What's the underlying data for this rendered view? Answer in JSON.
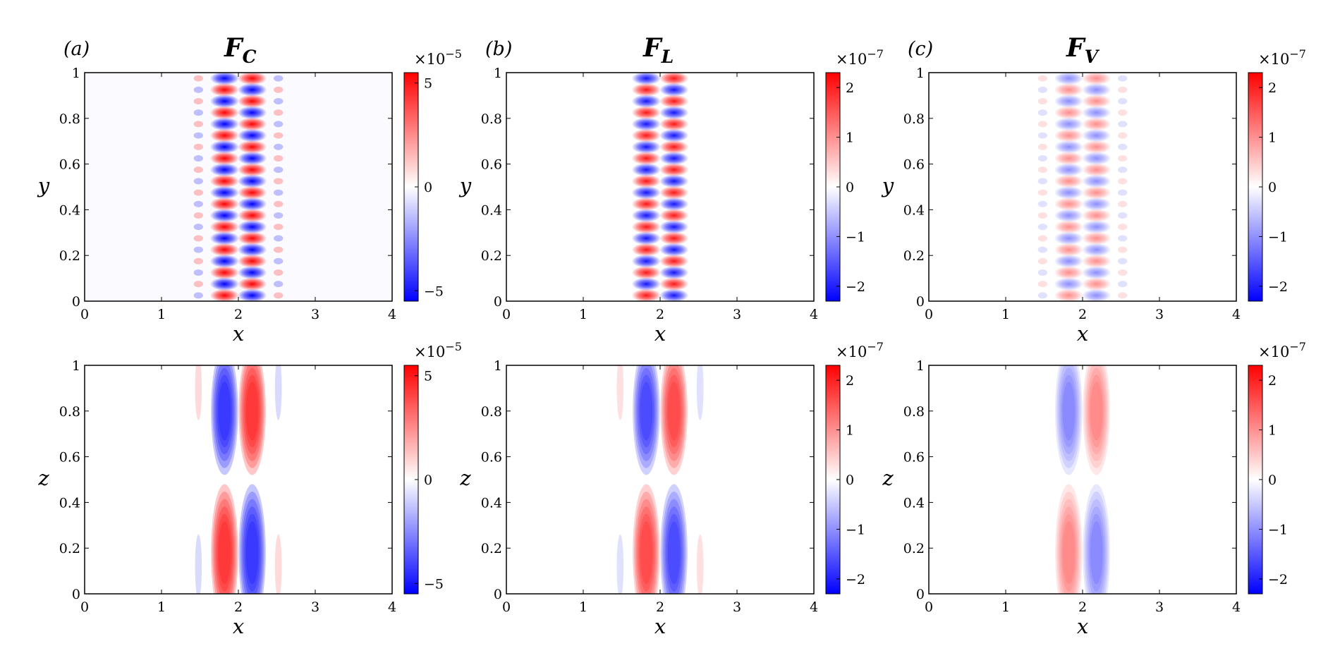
{
  "figure": {
    "columns": [
      {
        "tag": "(a)",
        "title_main": "F",
        "title_sub": "C"
      },
      {
        "tag": "(b)",
        "title_main": "F",
        "title_sub": "L"
      },
      {
        "tag": "(c)",
        "title_main": "F",
        "title_sub": "V"
      }
    ]
  },
  "chart_data": [
    {
      "type": "heatmap",
      "panel": "a-top",
      "title": "F_C",
      "xlabel": "x",
      "ylabel": "y",
      "xlim": [
        0,
        4
      ],
      "ylim": [
        0,
        1
      ],
      "xticks": [
        "0",
        "1",
        "2",
        "3",
        "4"
      ],
      "yticks": [
        "0",
        "0.2",
        "0.4",
        "0.6",
        "0.8",
        "1"
      ],
      "colorbar": {
        "multiplier": "×10",
        "exponent": "−5",
        "ticks": [
          "5",
          "0",
          "−5"
        ],
        "range": [
          -5.5,
          5.5
        ]
      },
      "pattern": {
        "kind": "xy-stripes",
        "centers": [
          1.82,
          2.18
        ],
        "amplitude": 1.0,
        "side_lobes": 0.12,
        "rows": 20
      }
    },
    {
      "type": "heatmap",
      "panel": "b-top",
      "title": "F_L",
      "xlabel": "x",
      "ylabel": "y",
      "xlim": [
        0,
        4
      ],
      "ylim": [
        0,
        1
      ],
      "xticks": [
        "0",
        "1",
        "2",
        "3",
        "4"
      ],
      "yticks": [
        "0",
        "0.2",
        "0.4",
        "0.6",
        "0.8",
        "1"
      ],
      "colorbar": {
        "multiplier": "×10",
        "exponent": "−7",
        "ticks": [
          "2",
          "1",
          "0",
          "−1",
          "−2"
        ],
        "range": [
          -2.3,
          2.3
        ]
      },
      "pattern": {
        "kind": "xy-stripes",
        "centers": [
          1.82,
          2.18
        ],
        "amplitude": 0.92,
        "side_lobes": 0.0,
        "rows": 20
      }
    },
    {
      "type": "heatmap",
      "panel": "c-top",
      "title": "F_V",
      "xlabel": "x",
      "ylabel": "y",
      "xlim": [
        0,
        4
      ],
      "ylim": [
        0,
        1
      ],
      "xticks": [
        "0",
        "1",
        "2",
        "3",
        "4"
      ],
      "yticks": [
        "0",
        "0.2",
        "0.4",
        "0.6",
        "0.8",
        "1"
      ],
      "colorbar": {
        "multiplier": "×10",
        "exponent": "−7",
        "ticks": [
          "2",
          "1",
          "0",
          "−1",
          "−2"
        ],
        "range": [
          -2.3,
          2.3
        ]
      },
      "pattern": {
        "kind": "xy-stripes",
        "centers": [
          1.82,
          2.18
        ],
        "amplitude": 0.45,
        "side_lobes": 0.06,
        "rows": 20
      }
    },
    {
      "type": "heatmap",
      "panel": "a-bottom",
      "xlabel": "x",
      "ylabel": "z",
      "xlim": [
        0,
        4
      ],
      "ylim": [
        0,
        1
      ],
      "xticks": [
        "0",
        "1",
        "2",
        "3",
        "4"
      ],
      "yticks": [
        "0",
        "0.2",
        "0.4",
        "0.6",
        "0.8",
        "1"
      ],
      "colorbar": {
        "multiplier": "×10",
        "exponent": "−5",
        "ticks": [
          "5",
          "0",
          "−5"
        ],
        "range": [
          -5.5,
          5.5
        ]
      },
      "pattern": {
        "kind": "xz-lobes",
        "centers": [
          1.82,
          2.18
        ],
        "amplitude": 1.0,
        "side_lobes": 0.12
      }
    },
    {
      "type": "heatmap",
      "panel": "b-bottom",
      "xlabel": "x",
      "ylabel": "z",
      "xlim": [
        0,
        4
      ],
      "ylim": [
        0,
        1
      ],
      "xticks": [
        "0",
        "1",
        "2",
        "3",
        "4"
      ],
      "yticks": [
        "0",
        "0.2",
        "0.4",
        "0.6",
        "0.8",
        "1"
      ],
      "colorbar": {
        "multiplier": "×10",
        "exponent": "−7",
        "ticks": [
          "2",
          "1",
          "0",
          "−1",
          "−2"
        ],
        "range": [
          -2.3,
          2.3
        ]
      },
      "pattern": {
        "kind": "xz-lobes",
        "centers": [
          1.82,
          2.18
        ],
        "amplitude": 0.82,
        "side_lobes": 0.1
      }
    },
    {
      "type": "heatmap",
      "panel": "c-bottom",
      "xlabel": "x",
      "ylabel": "z",
      "xlim": [
        0,
        4
      ],
      "ylim": [
        0,
        1
      ],
      "xticks": [
        "0",
        "1",
        "2",
        "3",
        "4"
      ],
      "yticks": [
        "0",
        "0.2",
        "0.4",
        "0.6",
        "0.8",
        "1"
      ],
      "colorbar": {
        "multiplier": "×10",
        "exponent": "−7",
        "ticks": [
          "2",
          "1",
          "0",
          "−1",
          "−2"
        ],
        "range": [
          -2.3,
          2.3
        ]
      },
      "pattern": {
        "kind": "xz-lobes",
        "centers": [
          1.82,
          2.18
        ],
        "amplitude": 0.42,
        "side_lobes": 0.0
      }
    }
  ],
  "colors": {
    "positive": "#ff0000",
    "negative": "#0000ff",
    "zero": "#ffffff"
  }
}
